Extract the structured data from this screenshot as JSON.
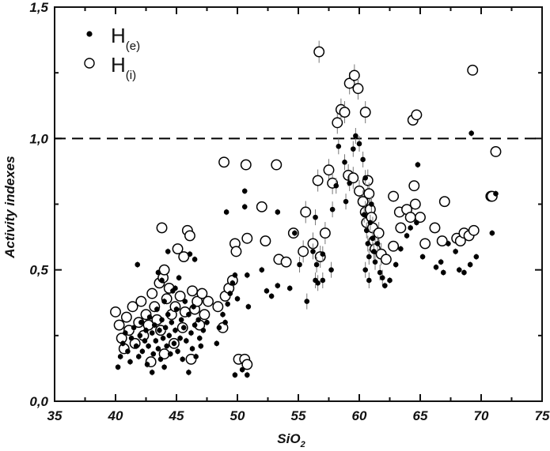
{
  "chart_data": {
    "type": "scatter",
    "title": "",
    "xlabel": "SiO2",
    "xlabel_main": "SiO",
    "xlabel_sub": "2",
    "ylabel": "Activity indexes",
    "xlim": [
      35,
      75
    ],
    "ylim": [
      0.0,
      1.5
    ],
    "x_ticks": [
      35,
      40,
      45,
      50,
      55,
      60,
      65,
      70,
      75
    ],
    "x_tick_labels": [
      "35",
      "40",
      "45",
      "50",
      "55",
      "60",
      "65",
      "70",
      "75"
    ],
    "y_ticks": [
      0.0,
      0.5,
      1.0,
      1.5
    ],
    "y_tick_labels": [
      "0,0",
      "0,5",
      "1,0",
      "1,5"
    ],
    "grid": false,
    "legend_position": "upper-left",
    "reference_line": {
      "y": 1.0,
      "style": "dashed",
      "color": "#000000"
    },
    "series": [
      {
        "name": "H(e)",
        "label_main": "H",
        "label_sub": "(e)",
        "marker": "filled-circle",
        "color": "#000000",
        "points": [
          [
            40.2,
            0.13
          ],
          [
            40.4,
            0.17
          ],
          [
            40.6,
            0.22
          ],
          [
            40.8,
            0.26
          ],
          [
            41.0,
            0.19
          ],
          [
            41.2,
            0.15
          ],
          [
            41.3,
            0.24
          ],
          [
            41.5,
            0.28
          ],
          [
            41.7,
            0.21
          ],
          [
            41.9,
            0.17
          ],
          [
            42.0,
            0.25
          ],
          [
            42.1,
            0.3
          ],
          [
            42.2,
            0.19
          ],
          [
            42.4,
            0.23
          ],
          [
            42.5,
            0.27
          ],
          [
            42.6,
            0.14
          ],
          [
            42.7,
            0.21
          ],
          [
            42.8,
            0.32
          ],
          [
            43.0,
            0.11
          ],
          [
            43.0,
            0.26
          ],
          [
            43.1,
            0.18
          ],
          [
            43.2,
            0.29
          ],
          [
            43.3,
            0.23
          ],
          [
            43.4,
            0.35
          ],
          [
            43.5,
            0.2
          ],
          [
            43.6,
            0.27
          ],
          [
            43.7,
            0.16
          ],
          [
            43.8,
            0.31
          ],
          [
            43.9,
            0.24
          ],
          [
            44.0,
            0.38
          ],
          [
            44.0,
            0.13
          ],
          [
            44.1,
            0.28
          ],
          [
            44.2,
            0.21
          ],
          [
            44.3,
            0.33
          ],
          [
            44.4,
            0.25
          ],
          [
            44.5,
            0.18
          ],
          [
            44.6,
            0.3
          ],
          [
            44.7,
            0.42
          ],
          [
            44.8,
            0.22
          ],
          [
            44.9,
            0.27
          ],
          [
            45.0,
            0.35
          ],
          [
            45.1,
            0.19
          ],
          [
            45.2,
            0.47
          ],
          [
            45.3,
            0.24
          ],
          [
            45.4,
            0.31
          ],
          [
            45.5,
            0.16
          ],
          [
            45.6,
            0.28
          ],
          [
            45.7,
            0.38
          ],
          [
            45.8,
            0.23
          ],
          [
            46.0,
            0.11
          ],
          [
            46.0,
            0.33
          ],
          [
            46.2,
            0.26
          ],
          [
            46.3,
            0.2
          ],
          [
            46.4,
            0.36
          ],
          [
            46.5,
            0.29
          ],
          [
            46.6,
            0.17
          ],
          [
            46.8,
            0.31
          ],
          [
            46.9,
            0.24
          ],
          [
            47.0,
            0.21
          ],
          [
            47.2,
            0.27
          ],
          [
            43.5,
            0.49
          ],
          [
            43.8,
            0.46
          ],
          [
            41.8,
            0.52
          ],
          [
            44.3,
            0.57
          ],
          [
            46.1,
            0.56
          ],
          [
            46.5,
            0.54
          ],
          [
            44.9,
            0.43
          ],
          [
            47.5,
            0.3
          ],
          [
            48.3,
            0.22
          ],
          [
            48.5,
            0.28
          ],
          [
            48.8,
            0.33
          ],
          [
            49.0,
            0.3
          ],
          [
            49.2,
            0.37
          ],
          [
            49.4,
            0.41
          ],
          [
            49.6,
            0.45
          ],
          [
            49.8,
            0.48
          ],
          [
            50.0,
            0.39
          ],
          [
            49.1,
            0.72
          ],
          [
            50.6,
            0.8
          ],
          [
            50.6,
            0.74
          ],
          [
            50.8,
            0.48
          ],
          [
            50.9,
            0.36
          ],
          [
            49.8,
            0.1
          ],
          [
            50.4,
            0.12
          ],
          [
            50.8,
            0.1
          ],
          [
            52.0,
            0.5
          ],
          [
            52.4,
            0.42
          ],
          [
            52.8,
            0.4
          ],
          [
            53.3,
            0.44
          ],
          [
            53.3,
            0.72
          ],
          [
            54.3,
            0.43
          ],
          [
            54.7,
            0.64
          ],
          [
            55.1,
            0.52
          ],
          [
            55.7,
            0.38
          ],
          [
            56.5,
            0.52
          ],
          [
            56.2,
            0.57
          ],
          [
            56.6,
            0.45
          ],
          [
            57.0,
            0.56
          ],
          [
            57.7,
            0.5
          ],
          [
            56.4,
            0.7
          ],
          [
            57.8,
            0.73
          ],
          [
            58.1,
            0.82
          ],
          [
            58.3,
            0.97
          ],
          [
            58.8,
            0.91
          ],
          [
            58.9,
            0.76
          ],
          [
            59.2,
            0.83
          ],
          [
            59.5,
            0.96
          ],
          [
            59.7,
            1.01
          ],
          [
            60.0,
            0.98
          ],
          [
            60.5,
            0.85
          ],
          [
            60.3,
            0.92
          ],
          [
            60.4,
            0.71
          ],
          [
            60.6,
            0.65
          ],
          [
            60.7,
            0.6
          ],
          [
            60.8,
            0.55
          ],
          [
            60.9,
            0.68
          ],
          [
            61.0,
            0.75
          ],
          [
            61.1,
            0.62
          ],
          [
            61.2,
            0.57
          ],
          [
            60.5,
            0.5
          ],
          [
            60.8,
            0.46
          ],
          [
            61.3,
            0.53
          ],
          [
            61.5,
            0.6
          ],
          [
            61.7,
            0.49
          ],
          [
            61.9,
            0.47
          ],
          [
            62.1,
            0.44
          ],
          [
            62.5,
            0.46
          ],
          [
            63.0,
            0.52
          ],
          [
            63.4,
            0.58
          ],
          [
            63.9,
            0.63
          ],
          [
            64.2,
            0.66
          ],
          [
            64.7,
            0.68
          ],
          [
            64.8,
            0.9
          ],
          [
            65.2,
            0.55
          ],
          [
            66.3,
            0.51
          ],
          [
            66.7,
            0.53
          ],
          [
            66.9,
            0.49
          ],
          [
            67.3,
            0.6
          ],
          [
            67.9,
            0.57
          ],
          [
            68.2,
            0.5
          ],
          [
            68.6,
            0.49
          ],
          [
            69.1,
            0.52
          ],
          [
            69.6,
            0.55
          ],
          [
            69.2,
            1.02
          ],
          [
            71.2,
            0.79
          ],
          [
            70.9,
            0.64
          ],
          [
            57.0,
            0.46
          ],
          [
            56.4,
            0.46
          ]
        ]
      },
      {
        "name": "H(i)",
        "label_main": "H",
        "label_sub": "(i)",
        "marker": "open-circle",
        "color": "#000000",
        "points": [
          [
            40.0,
            0.34
          ],
          [
            40.3,
            0.29
          ],
          [
            40.5,
            0.24
          ],
          [
            40.7,
            0.2
          ],
          [
            40.9,
            0.32
          ],
          [
            41.1,
            0.27
          ],
          [
            41.4,
            0.36
          ],
          [
            41.6,
            0.22
          ],
          [
            41.9,
            0.3
          ],
          [
            42.1,
            0.38
          ],
          [
            42.3,
            0.25
          ],
          [
            42.5,
            0.33
          ],
          [
            42.7,
            0.29
          ],
          [
            42.9,
            0.15
          ],
          [
            43.0,
            0.41
          ],
          [
            43.2,
            0.36
          ],
          [
            43.4,
            0.31
          ],
          [
            43.6,
            0.45
          ],
          [
            43.7,
            0.27
          ],
          [
            43.9,
            0.47
          ],
          [
            44.0,
            0.5
          ],
          [
            44.2,
            0.39
          ],
          [
            44.4,
            0.43
          ],
          [
            44.6,
            0.33
          ],
          [
            44.8,
            0.22
          ],
          [
            44.9,
            0.36
          ],
          [
            45.1,
            0.58
          ],
          [
            45.3,
            0.4
          ],
          [
            45.5,
            0.28
          ],
          [
            45.7,
            0.34
          ],
          [
            45.9,
            0.65
          ],
          [
            46.1,
            0.63
          ],
          [
            46.3,
            0.42
          ],
          [
            46.5,
            0.35
          ],
          [
            46.7,
            0.38
          ],
          [
            46.9,
            0.29
          ],
          [
            47.1,
            0.41
          ],
          [
            47.3,
            0.33
          ],
          [
            43.8,
            0.66
          ],
          [
            45.6,
            0.55
          ],
          [
            46.2,
            0.16
          ],
          [
            44.0,
            0.18
          ],
          [
            47.6,
            0.38
          ],
          [
            48.4,
            0.36
          ],
          [
            48.8,
            0.28
          ],
          [
            49.0,
            0.4
          ],
          [
            49.3,
            0.43
          ],
          [
            49.6,
            0.46
          ],
          [
            49.8,
            0.6
          ],
          [
            49.9,
            0.57
          ],
          [
            48.9,
            0.91
          ],
          [
            50.7,
            0.9
          ],
          [
            50.1,
            0.16
          ],
          [
            50.6,
            0.16
          ],
          [
            50.8,
            0.14
          ],
          [
            50.8,
            0.62
          ],
          [
            52.0,
            0.74
          ],
          [
            53.2,
            0.9
          ],
          [
            52.3,
            0.61
          ],
          [
            53.4,
            0.54
          ],
          [
            54.0,
            0.53
          ],
          [
            54.6,
            0.64
          ],
          [
            55.4,
            0.57
          ],
          [
            56.2,
            0.6
          ],
          [
            56.8,
            0.55
          ],
          [
            57.2,
            0.64
          ],
          [
            55.6,
            0.72
          ],
          [
            56.7,
            1.33
          ],
          [
            56.6,
            0.84
          ],
          [
            57.5,
            0.88
          ],
          [
            57.8,
            0.83
          ],
          [
            58.2,
            1.06
          ],
          [
            58.5,
            1.11
          ],
          [
            58.8,
            1.1
          ],
          [
            59.2,
            1.21
          ],
          [
            59.6,
            1.24
          ],
          [
            59.9,
            1.19
          ],
          [
            60.5,
            1.1
          ],
          [
            59.1,
            0.86
          ],
          [
            59.5,
            0.85
          ],
          [
            60.0,
            0.8
          ],
          [
            60.3,
            0.76
          ],
          [
            60.5,
            0.72
          ],
          [
            60.6,
            0.68
          ],
          [
            60.7,
            0.84
          ],
          [
            60.8,
            0.79
          ],
          [
            60.9,
            0.73
          ],
          [
            61.0,
            0.7
          ],
          [
            61.1,
            0.66
          ],
          [
            61.2,
            0.61
          ],
          [
            61.3,
            0.58
          ],
          [
            61.6,
            0.64
          ],
          [
            61.8,
            0.56
          ],
          [
            62.2,
            0.54
          ],
          [
            62.8,
            0.78
          ],
          [
            63.3,
            0.72
          ],
          [
            63.9,
            0.73
          ],
          [
            64.2,
            0.7
          ],
          [
            64.5,
            0.82
          ],
          [
            64.6,
            0.75
          ],
          [
            64.4,
            1.07
          ],
          [
            64.7,
            1.09
          ],
          [
            62.8,
            0.59
          ],
          [
            63.4,
            0.66
          ],
          [
            65.0,
            0.7
          ],
          [
            65.4,
            0.6
          ],
          [
            66.2,
            0.66
          ],
          [
            66.8,
            0.61
          ],
          [
            67.0,
            0.76
          ],
          [
            68.0,
            0.62
          ],
          [
            68.3,
            0.61
          ],
          [
            68.6,
            0.64
          ],
          [
            69.0,
            0.63
          ],
          [
            69.4,
            0.65
          ],
          [
            69.3,
            1.26
          ],
          [
            71.2,
            0.95
          ],
          [
            70.8,
            0.78
          ],
          [
            70.9,
            0.78
          ]
        ]
      }
    ]
  }
}
